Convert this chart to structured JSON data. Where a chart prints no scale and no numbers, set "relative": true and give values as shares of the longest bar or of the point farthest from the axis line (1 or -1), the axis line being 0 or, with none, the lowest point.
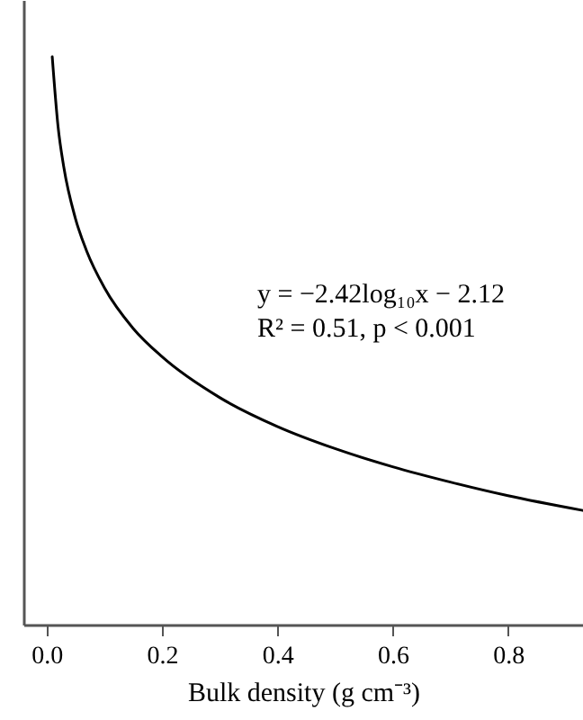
{
  "chart_data": {
    "type": "line",
    "xlabel": "Bulk density (g cm⁻³)",
    "annotations": [
      "y = −2.42log₁₀x − 2.12",
      "R² = 0.51, p < 0.001"
    ],
    "relative": true,
    "x": [
      0.01,
      0.02,
      0.03,
      0.05,
      0.07,
      0.1,
      0.15,
      0.2,
      0.3,
      0.4,
      0.5,
      0.6,
      0.7,
      0.8,
      0.93
    ],
    "series": [
      {
        "color": "#000000",
        "values": [
          1.0,
          0.878,
          0.806,
          0.716,
          0.657,
          0.594,
          0.522,
          0.472,
          0.4,
          0.349,
          0.31,
          0.278,
          0.251,
          0.227,
          0.201
        ]
      }
    ],
    "xlim": [
      -0.04,
      0.93
    ],
    "xticks": [
      {
        "value": 0,
        "label": "0.0"
      },
      {
        "value": 0.2,
        "label": "0.2"
      },
      {
        "value": 0.4,
        "label": "0.4"
      },
      {
        "value": 0.6,
        "label": "0.6"
      },
      {
        "value": 0.8,
        "label": "0.8"
      }
    ],
    "grid": false,
    "marker": "none",
    "line_style": "solid"
  }
}
